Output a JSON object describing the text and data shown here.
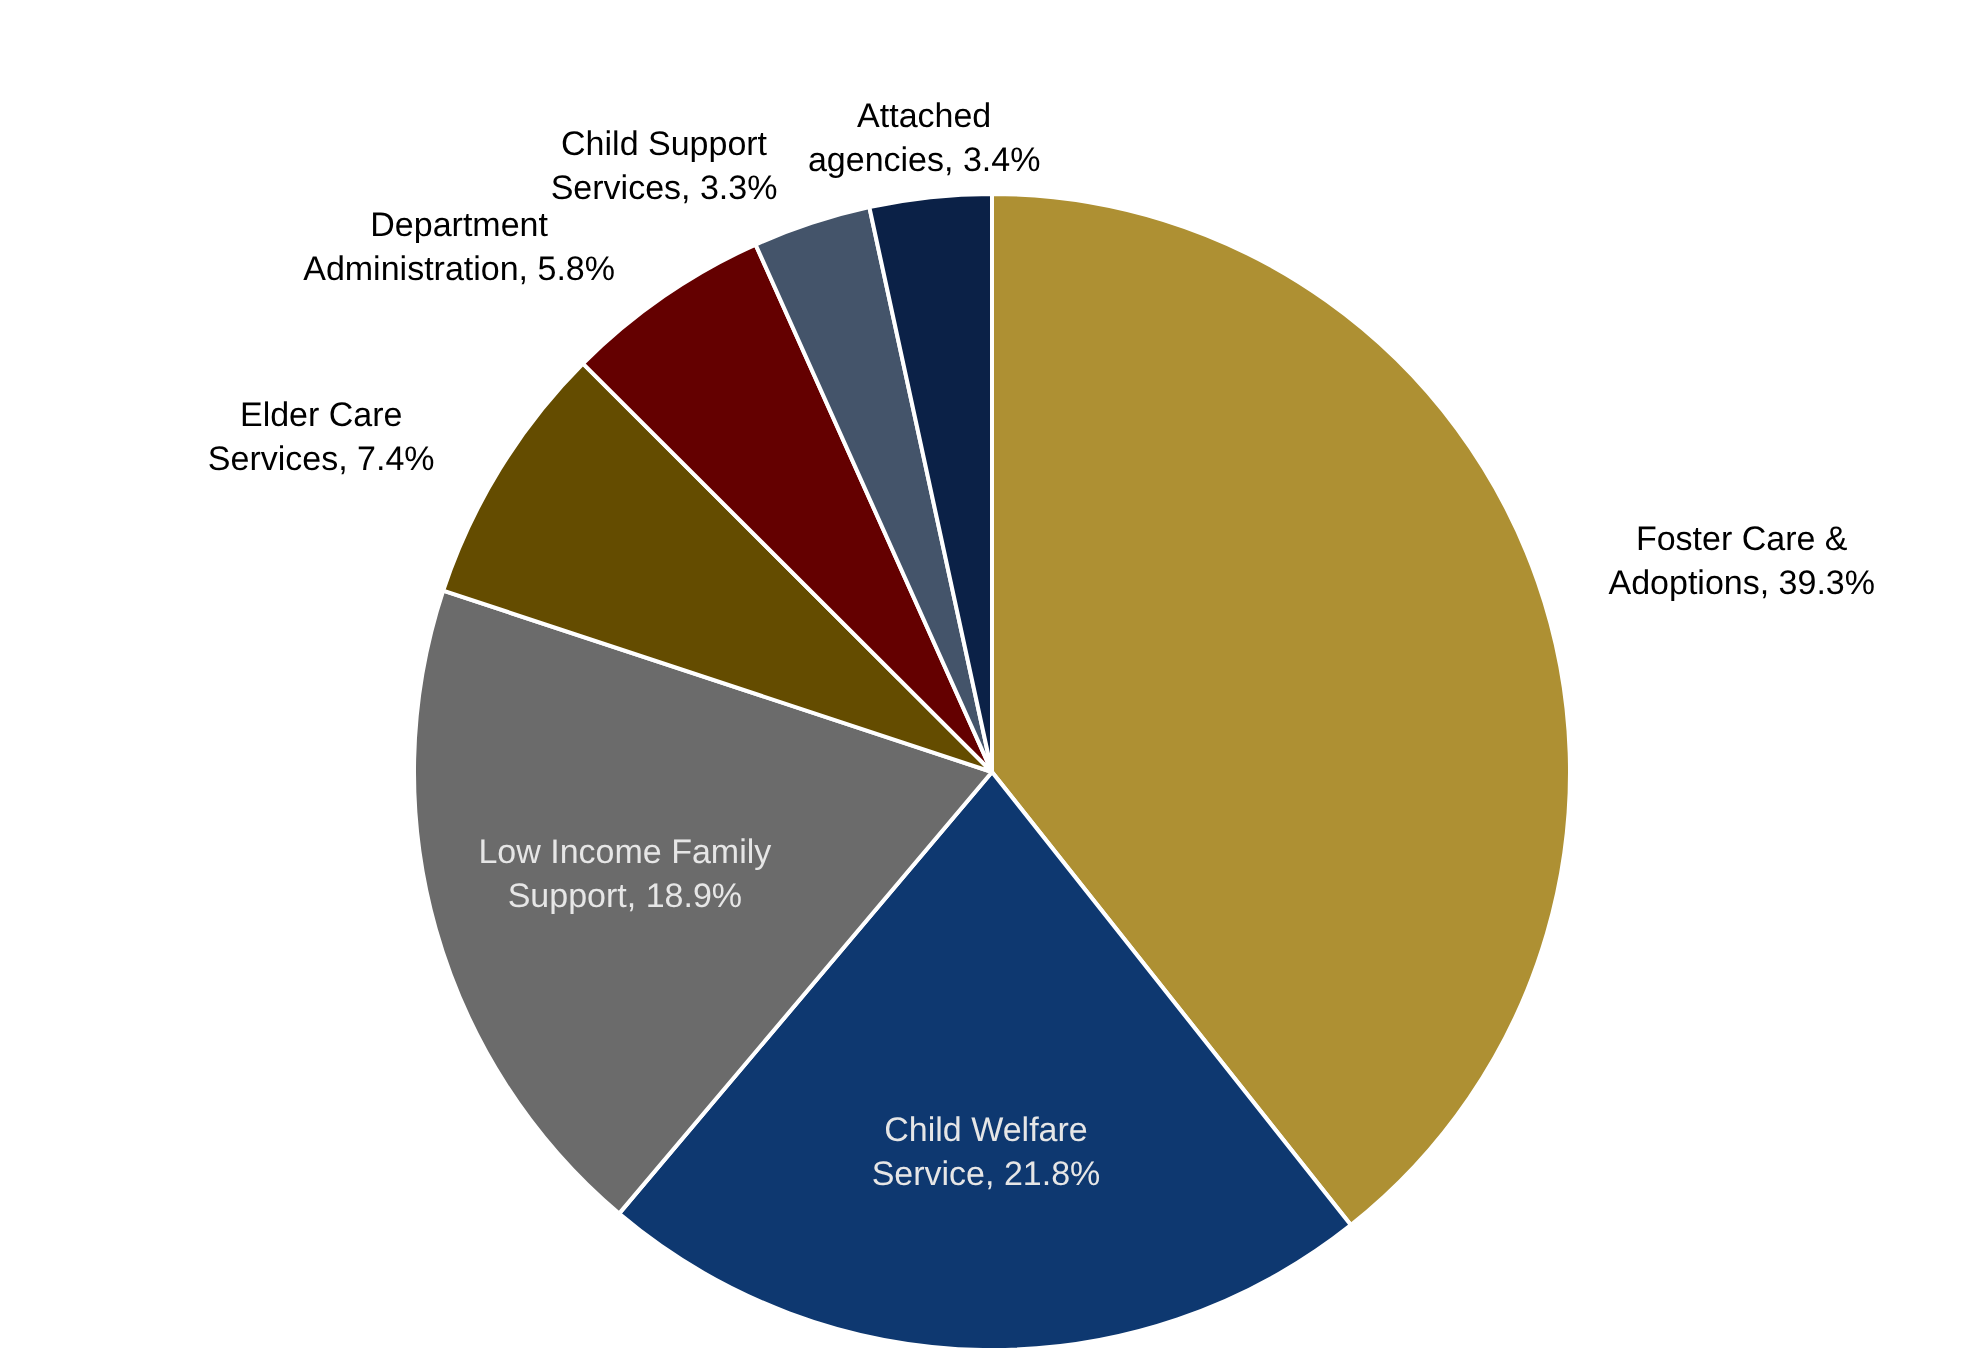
{
  "chart_data": {
    "type": "pie",
    "categories": [
      "Foster Care & Adoptions",
      "Child Welfare Service",
      "Low Income Family Support",
      "Elder Care Services",
      "Department Administration",
      "Child Support Services",
      "Attached agencies"
    ],
    "values": [
      39.3,
      21.8,
      18.9,
      7.4,
      5.8,
      3.3,
      3.4
    ],
    "colors": [
      "#ae9033",
      "#0e3870",
      "#6b6b6b",
      "#644c00",
      "#640000",
      "#44546a",
      "#0b2147"
    ],
    "value_labels": [
      "39.3%",
      "21.8%",
      "18.9%",
      "7.4%",
      "5.8%",
      "3.3%",
      "3.4%"
    ],
    "legend": false
  }
}
